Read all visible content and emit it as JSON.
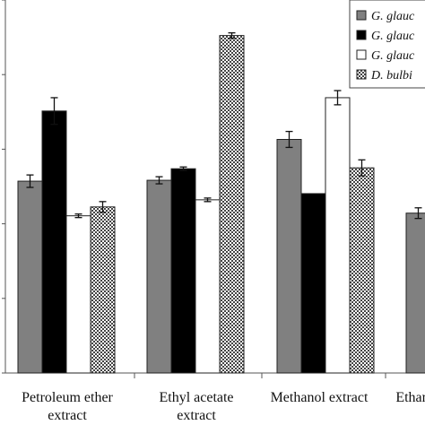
{
  "chart_data": {
    "type": "bar",
    "title": "",
    "xlabel": "",
    "ylabel": "",
    "ylim": [
      0,
      420
    ],
    "grid": false,
    "legend_position": "top-right",
    "categories": [
      [
        "Petroleum ether",
        "extract"
      ],
      [
        "Ethyl acetate",
        "extract"
      ],
      [
        "Methanol extract"
      ],
      [
        "Ethan"
      ]
    ],
    "series": [
      {
        "name": "G. glauc",
        "color": "#808080",
        "pattern": "solid",
        "values": [
          216,
          217,
          263,
          180
        ],
        "errors": [
          7,
          4,
          9,
          6
        ]
      },
      {
        "name": "G. glauc",
        "color": "#000000",
        "pattern": "solid",
        "values": [
          295,
          230,
          202,
          null
        ],
        "errors": [
          15,
          2,
          0,
          null
        ]
      },
      {
        "name": "G. glauc",
        "color": "#ffffff",
        "pattern": "solid",
        "values": [
          177,
          195,
          310,
          null
        ],
        "errors": [
          2,
          2,
          8,
          null
        ]
      },
      {
        "name": "D. bulbi",
        "color": "#c8c8c8",
        "pattern": "checker",
        "values": [
          187,
          380,
          231,
          null
        ],
        "errors": [
          6,
          3,
          9,
          null
        ]
      }
    ]
  }
}
